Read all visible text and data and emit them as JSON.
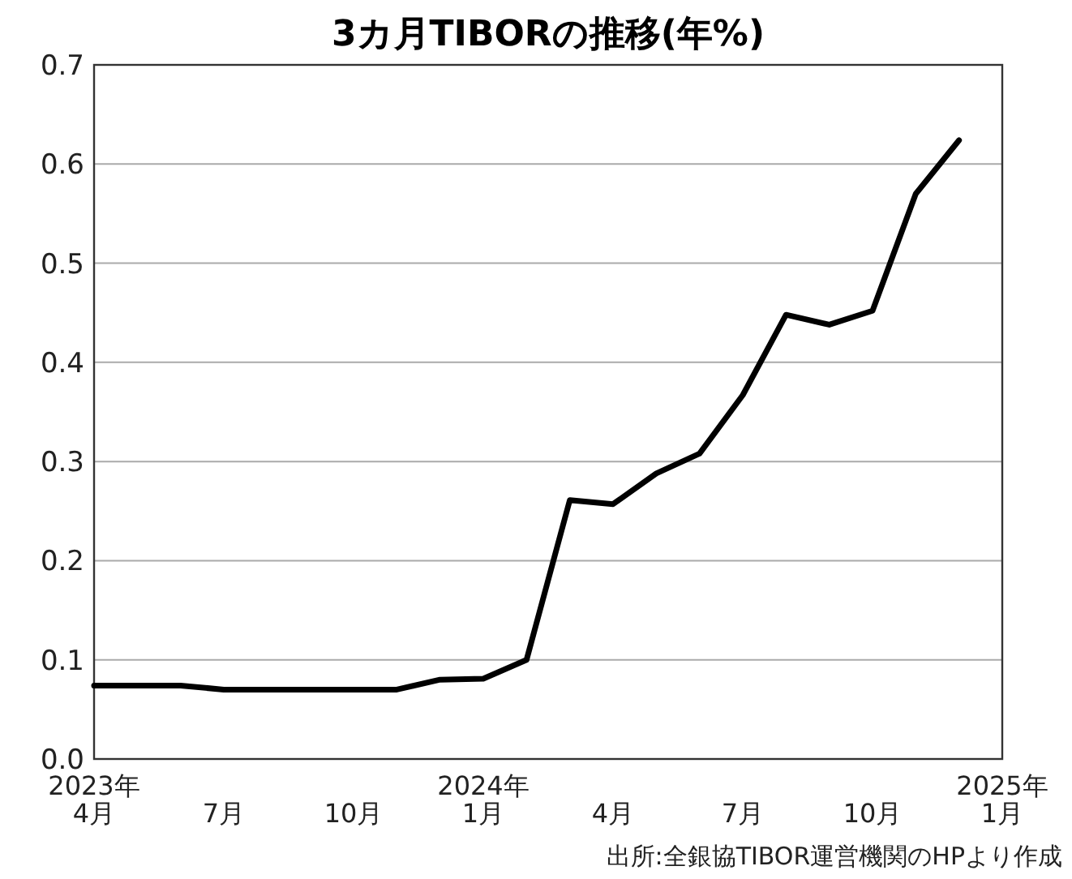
{
  "chart_data": {
    "type": "line",
    "title": "3カ月TIBORの推移(年%)",
    "x": [
      "2023-04",
      "2023-05",
      "2023-06",
      "2023-07",
      "2023-08",
      "2023-09",
      "2023-10",
      "2023-11",
      "2023-12",
      "2024-01",
      "2024-02",
      "2024-03",
      "2024-04",
      "2024-05",
      "2024-06",
      "2024-07",
      "2024-08",
      "2024-09",
      "2024-10",
      "2024-11",
      "2024-12"
    ],
    "series": [
      {
        "color": "#000000",
        "values": [
          0.074,
          0.074,
          0.074,
          0.07,
          0.07,
          0.07,
          0.07,
          0.07,
          0.08,
          0.081,
          0.1,
          0.261,
          0.257,
          0.288,
          0.308,
          0.367,
          0.448,
          0.438,
          0.452,
          0.57,
          0.624
        ]
      }
    ],
    "xlim": [
      "2023-04",
      "2025-01"
    ],
    "xticks": [
      {
        "value": "2023-04",
        "label": "2023年\n4月"
      },
      {
        "value": "2023-07",
        "label": "7月"
      },
      {
        "value": "2023-10",
        "label": "10月"
      },
      {
        "value": "2024-01",
        "label": "2024年\n1月"
      },
      {
        "value": "2024-04",
        "label": "4月"
      },
      {
        "value": "2024-07",
        "label": "7月"
      },
      {
        "value": "2024-10",
        "label": "10月"
      },
      {
        "value": "2025-01",
        "label": "2025年\n1月"
      }
    ],
    "ylim": [
      0,
      0.7
    ],
    "yticks": [
      {
        "value": 0,
        "label": "0.0"
      },
      0.1,
      0.2,
      0.3,
      0.4,
      0.5,
      0.6,
      0.7
    ],
    "grid": "y",
    "marker": "none",
    "line_style": "solid",
    "annotations": [
      "出所:全銀協TIBOR運営機関のHPより作成"
    ]
  }
}
